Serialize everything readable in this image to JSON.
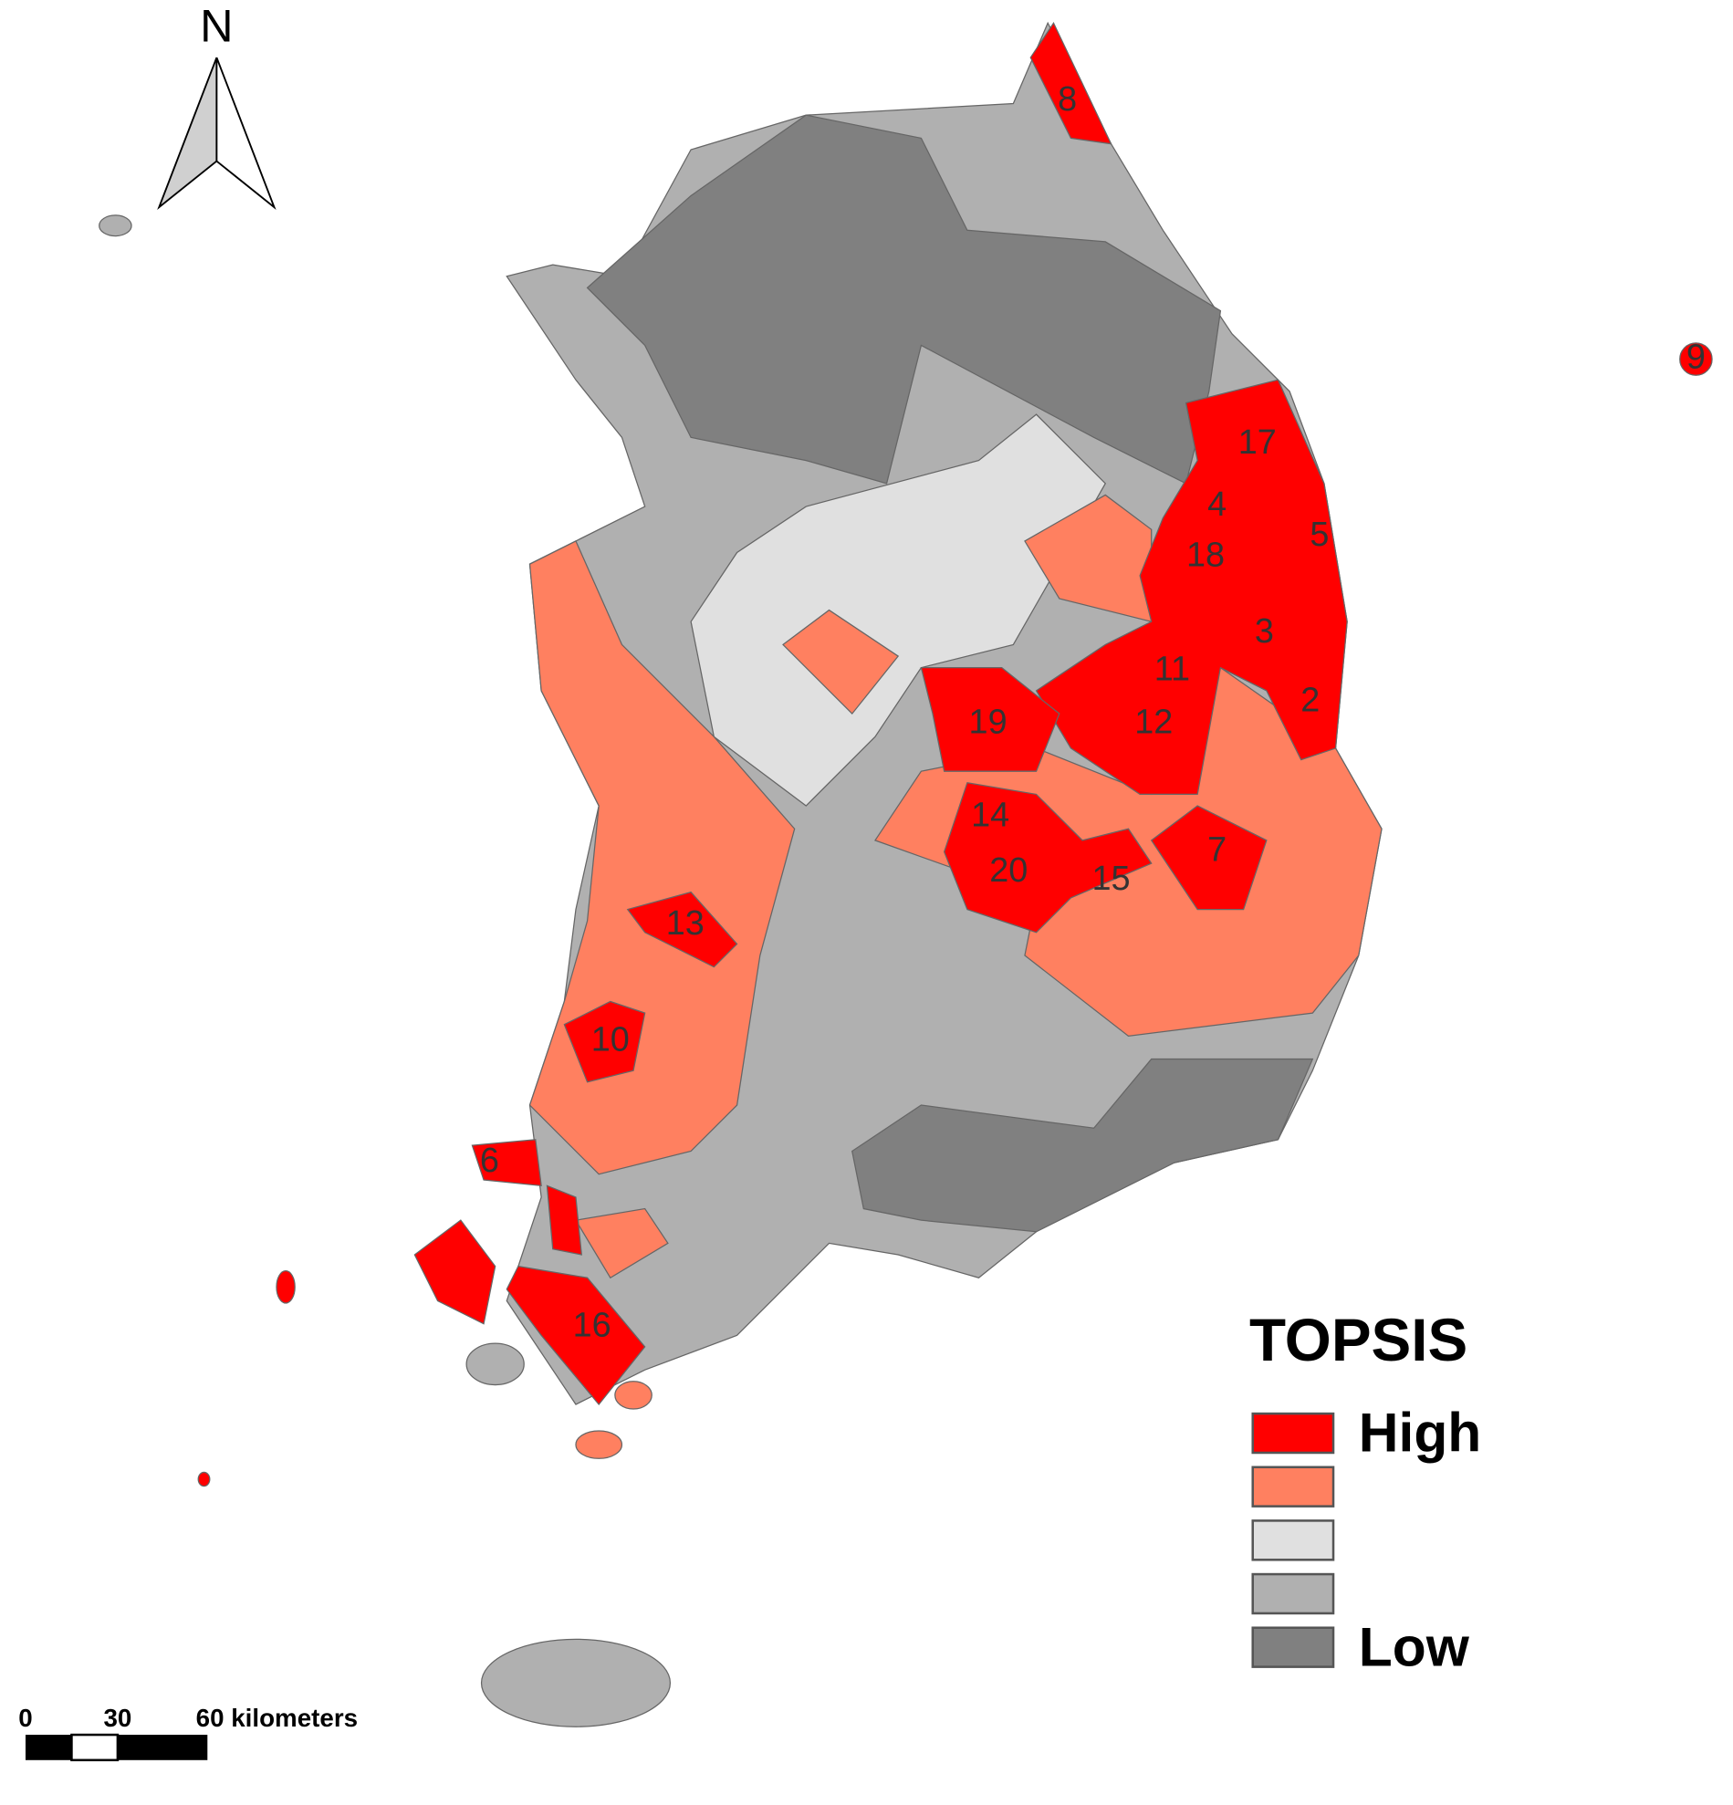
{
  "map": {
    "north_label": "N",
    "region_labels": [
      "8",
      "9",
      "17",
      "4",
      "5",
      "18",
      "3",
      "11",
      "2",
      "19",
      "12",
      "14",
      "7",
      "20",
      "15",
      "13",
      "10",
      "6",
      "16"
    ],
    "legend": {
      "title": "TOPSIS",
      "items": [
        {
          "color": "#ff0000",
          "label": "High"
        },
        {
          "color": "#ff8060"
        },
        {
          "color": "#e0e0e0"
        },
        {
          "color": "#b0b0b0"
        },
        {
          "color": "#808080",
          "label": "Low"
        }
      ]
    },
    "scale_bar": {
      "ticks": [
        "0",
        "30"
      ],
      "end_label": "60 kilometers"
    }
  }
}
